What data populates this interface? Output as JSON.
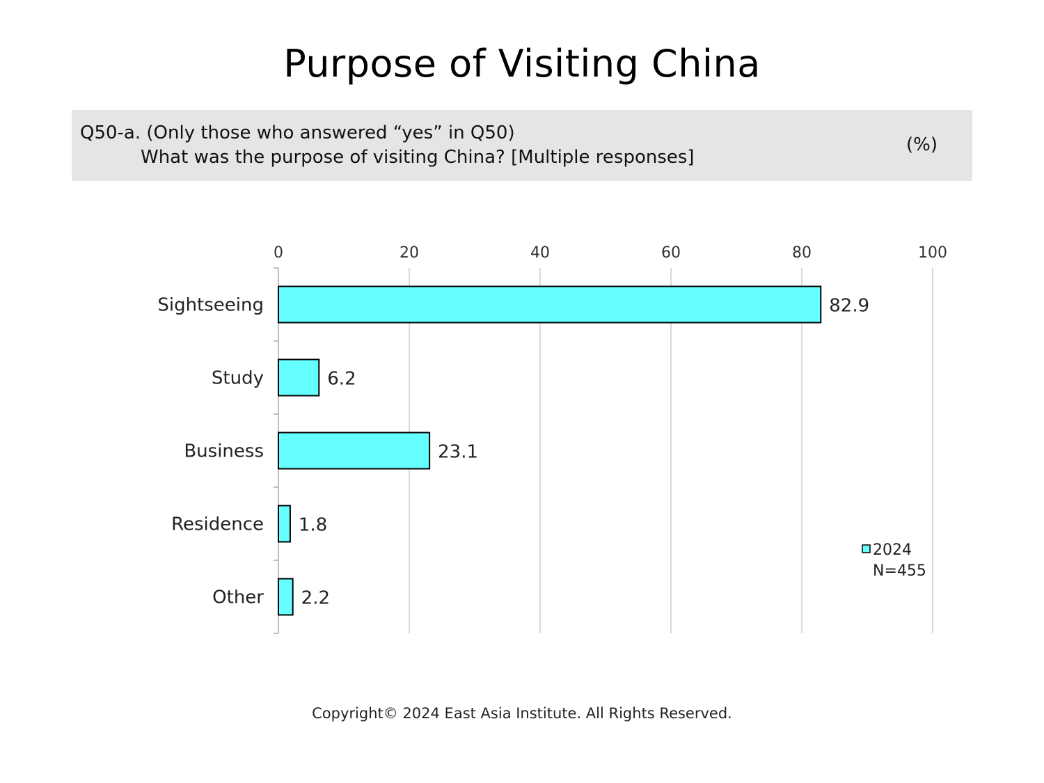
{
  "chart_data": {
    "type": "bar",
    "orientation": "horizontal",
    "title": "Purpose of Visiting China",
    "question_line1": "Q50-a. (Only those who answered “yes” in Q50)",
    "question_line2": "What was the purpose of visiting China? [Multiple responses]",
    "unit": "(%)",
    "categories": [
      "Sightseeing",
      "Study",
      "Business",
      "Residence",
      "Other"
    ],
    "series": [
      {
        "name": "2024",
        "values": [
          82.9,
          6.2,
          23.1,
          1.8,
          2.2
        ],
        "color": "#66ffff"
      }
    ],
    "xlim": [
      0,
      100
    ],
    "xticks": [
      0,
      20,
      40,
      60,
      80,
      100
    ],
    "xaxis_position": "top",
    "grid": true,
    "legend": {
      "position": "bottom-right",
      "label": "2024",
      "note": "N=455"
    }
  },
  "footer": {
    "copyright": "Copyright© 2024 East Asia Institute. All Rights Reserved."
  }
}
